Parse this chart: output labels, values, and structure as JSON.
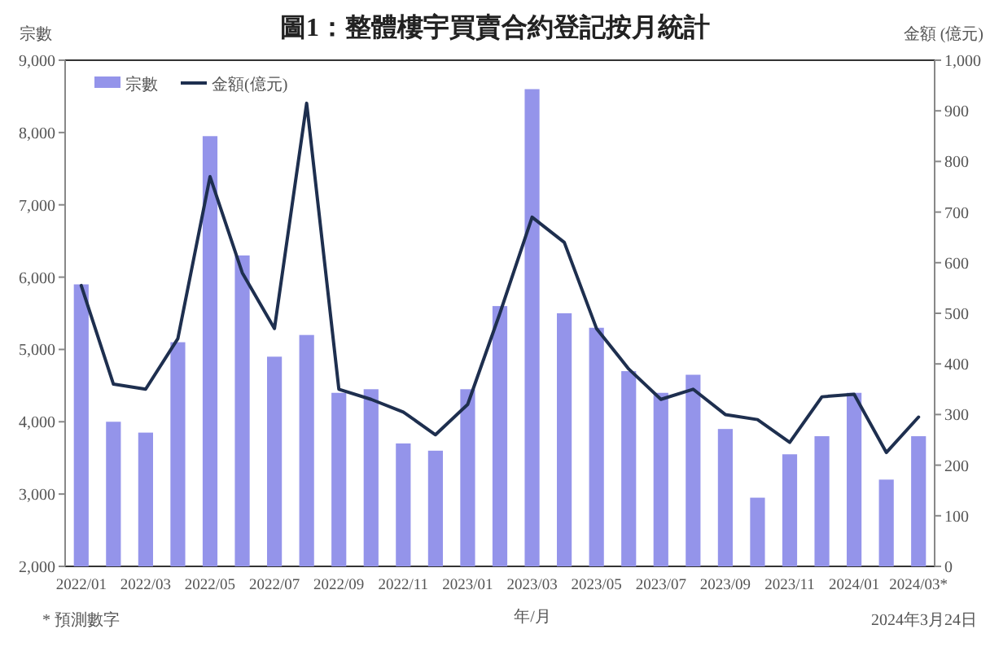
{
  "chart_data": {
    "type": "bar",
    "title": "圖1：整體樓宇買賣合約登記按月統計",
    "xlabel": "年/月",
    "ylabel": "宗數",
    "y2label": "金額 (億元)",
    "categories": [
      "2022/01",
      null,
      "2022/03",
      null,
      "2022/05",
      null,
      "2022/07",
      null,
      "2022/09",
      null,
      "2022/11",
      null,
      "2023/01",
      null,
      "2023/03",
      null,
      "2023/05",
      null,
      "2023/07",
      null,
      "2023/09",
      null,
      "2023/11",
      null,
      "2024/01",
      null,
      "2024/03*"
    ],
    "series": [
      {
        "name": "宗數",
        "color": "#9494ea",
        "values": [
          5900,
          4000,
          3850,
          5100,
          7950,
          6300,
          4900,
          5200,
          4400,
          4450,
          3700,
          3600,
          4450,
          5600,
          8600,
          5500,
          5300,
          4700,
          4400,
          4650,
          3900,
          2950,
          3550,
          3800,
          4400,
          3200,
          3800
        ]
      },
      {
        "name": "金額(億元)",
        "type": "line",
        "axis": "y2",
        "color": "#1e2f4f",
        "values": [
          555,
          360,
          350,
          450,
          770,
          580,
          470,
          915,
          350,
          330,
          305,
          260,
          320,
          500,
          690,
          640,
          470,
          390,
          330,
          350,
          300,
          290,
          245,
          335,
          340,
          225,
          295
        ]
      }
    ],
    "ylim": [
      2000,
      9000
    ],
    "yticks": [
      {
        "value": 2000,
        "label": "2,000"
      },
      {
        "value": 3000,
        "label": "3,000"
      },
      {
        "value": 4000,
        "label": "4,000"
      },
      {
        "value": 5000,
        "label": "5,000"
      },
      {
        "value": 6000,
        "label": "6,000"
      },
      {
        "value": 7000,
        "label": "7,000"
      },
      {
        "value": 8000,
        "label": "8,000"
      },
      {
        "value": 9000,
        "label": "9,000"
      }
    ],
    "y2lim": [
      0,
      1000
    ],
    "y2ticks": [
      0,
      100,
      200,
      300,
      400,
      500,
      600,
      700,
      800,
      900,
      {
        "value": 1000,
        "label": "1,000"
      }
    ],
    "legend": "top left",
    "annotations": [
      "* 預測數字",
      "2024年3月24日"
    ]
  }
}
